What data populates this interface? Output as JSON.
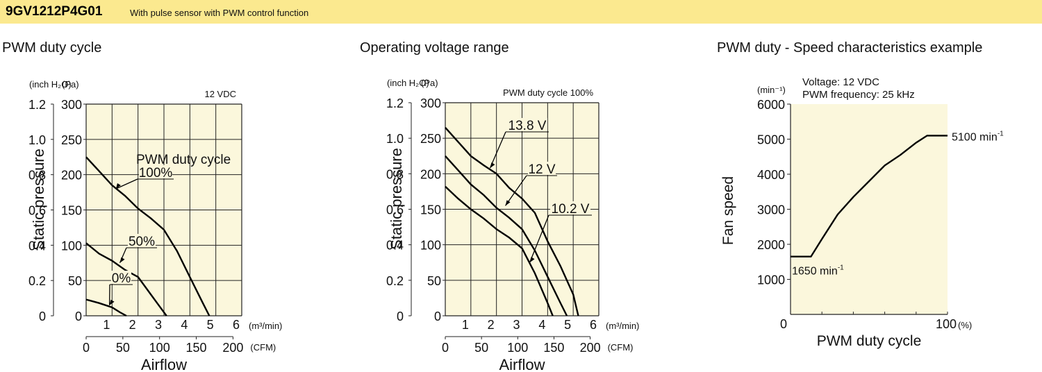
{
  "header": {
    "model": "9GV1212P4G01",
    "description": "With pulse sensor with PWM control function",
    "band_color": "#fbe98f"
  },
  "colors": {
    "plot_background": "#fbf7dc",
    "grid": "#222222",
    "curve": "#000000"
  },
  "chart_data": [
    {
      "type": "line",
      "title": "PWM duty cycle",
      "note": "12 VDC",
      "xlabel": "Airflow",
      "ylabel": "Static pressure",
      "x_unit_primary": "(m³/min)",
      "x_unit_secondary": "(CFM)",
      "y_unit_left": "(inch H₂O)",
      "y_unit_right": "(Pa)",
      "xlim": [
        0,
        6
      ],
      "ylim": [
        0,
        300
      ],
      "x_ticks": [
        1,
        2,
        3,
        4,
        5,
        6
      ],
      "y_ticks": [
        0,
        50,
        100,
        150,
        200,
        250,
        300
      ],
      "x_ticks_secondary": [
        0,
        50,
        100,
        150,
        200
      ],
      "y_ticks_secondary": [
        "0",
        "0.2",
        "0.4",
        "0.6",
        "0.8",
        "1.0",
        "1.2"
      ],
      "legend_title": "PWM duty cycle",
      "series": [
        {
          "name": "100%",
          "x": [
            0,
            0.5,
            1.0,
            1.5,
            2.0,
            2.5,
            3.0,
            3.5,
            4.0,
            4.5,
            4.75
          ],
          "y": [
            225,
            205,
            185,
            170,
            152,
            138,
            122,
            92,
            55,
            18,
            0
          ]
        },
        {
          "name": "50%",
          "x": [
            0,
            0.5,
            1.0,
            1.5,
            2.0,
            2.5,
            2.8,
            3.1
          ],
          "y": [
            103,
            88,
            78,
            65,
            55,
            30,
            15,
            0
          ]
        },
        {
          "name": "0%",
          "x": [
            0,
            0.5,
            1.0,
            1.3,
            1.55
          ],
          "y": [
            23,
            18,
            12,
            5,
            0
          ]
        }
      ]
    },
    {
      "type": "line",
      "title": "Operating voltage range",
      "note": "PWM duty cycle 100%",
      "xlabel": "Airflow",
      "ylabel": "Static pressure",
      "x_unit_primary": "(m³/min)",
      "x_unit_secondary": "(CFM)",
      "y_unit_left": "(inch H₂O)",
      "y_unit_right": "(Pa)",
      "xlim": [
        0,
        6
      ],
      "ylim": [
        0,
        300
      ],
      "x_ticks": [
        1,
        2,
        3,
        4,
        5,
        6
      ],
      "y_ticks": [
        0,
        50,
        100,
        150,
        200,
        250,
        300
      ],
      "x_ticks_secondary": [
        0,
        50,
        100,
        150,
        200
      ],
      "y_ticks_secondary": [
        "0",
        "0.2",
        "0.4",
        "0.6",
        "0.8",
        "1.0",
        "1.2"
      ],
      "series": [
        {
          "name": "13.8 V",
          "x": [
            0,
            0.5,
            1.0,
            1.5,
            2.0,
            2.5,
            3.0,
            3.5,
            4.0,
            4.5,
            5.0,
            5.2
          ],
          "y": [
            265,
            245,
            225,
            212,
            200,
            180,
            165,
            145,
            105,
            70,
            30,
            0
          ]
        },
        {
          "name": "12 V",
          "x": [
            0,
            0.5,
            1.0,
            1.5,
            2.0,
            2.5,
            3.0,
            3.5,
            4.0,
            4.5,
            4.75
          ],
          "y": [
            225,
            205,
            185,
            170,
            152,
            138,
            122,
            92,
            55,
            18,
            0
          ]
        },
        {
          "name": "10.2 V",
          "x": [
            0,
            0.5,
            1.0,
            1.5,
            2.0,
            2.5,
            3.0,
            3.5,
            4.0,
            4.2
          ],
          "y": [
            182,
            165,
            150,
            137,
            122,
            110,
            95,
            60,
            18,
            0
          ]
        }
      ]
    },
    {
      "type": "line",
      "title": "PWM duty - Speed characteristics example",
      "xlabel": "PWM duty cycle",
      "ylabel": "Fan speed",
      "x_unit": "(%)",
      "y_unit": "(min⁻¹)",
      "xlim": [
        0,
        100
      ],
      "ylim": [
        0,
        6000
      ],
      "x_ticks": [
        "0",
        "100"
      ],
      "y_ticks": [
        1000,
        2000,
        3000,
        4000,
        5000,
        6000
      ],
      "conditions": [
        "Voltage: 12 VDC",
        "PWM frequency: 25 kHz"
      ],
      "annotations": [
        {
          "text": "5100 min",
          "superscript": "-1"
        },
        {
          "text": "1650 min",
          "superscript": "-1"
        }
      ],
      "series": [
        {
          "name": "",
          "x": [
            0,
            13,
            20,
            30,
            40,
            50,
            60,
            70,
            80,
            87,
            90,
            100
          ],
          "y": [
            1650,
            1650,
            2150,
            2850,
            3350,
            3800,
            4250,
            4550,
            4900,
            5100,
            5100,
            5100
          ]
        }
      ]
    }
  ]
}
